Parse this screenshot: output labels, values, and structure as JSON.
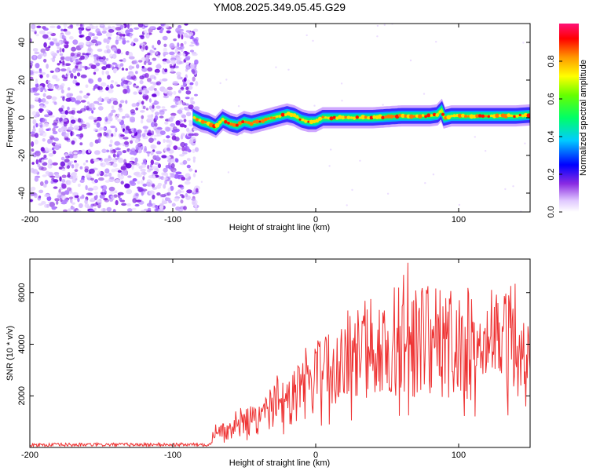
{
  "title": "YM08.2025.349.05.45.G29",
  "chart_data": [
    {
      "type": "heatmap",
      "name": "spectrogram",
      "xlabel": "Height of straight line (km)",
      "ylabel": "Frequency (Hz)",
      "xlim": [
        -200,
        150
      ],
      "ylim": [
        -50,
        50
      ],
      "xticks": [
        -200,
        -100,
        0,
        100
      ],
      "yticks": [
        -40,
        -20,
        0,
        20,
        40
      ],
      "colorbar": {
        "label": "Normalized spectral amplitude",
        "range": [
          0,
          1
        ],
        "ticks": [
          0.0,
          0.2,
          0.4,
          0.6,
          0.8
        ]
      },
      "noise_region_x": [
        -200,
        -85
      ],
      "signal_track": {
        "x": [
          -85,
          -80,
          -75,
          -70,
          -65,
          -60,
          -55,
          -50,
          -45,
          -40,
          -35,
          -30,
          -25,
          -20,
          -15,
          -10,
          -5,
          0,
          5,
          10,
          20,
          30,
          40,
          50,
          60,
          70,
          80,
          85,
          88,
          90,
          95,
          100,
          110,
          120,
          130,
          140,
          150
        ],
        "freq": [
          0,
          -2,
          -3,
          -5,
          -1,
          -3,
          -4,
          -2,
          -3,
          -2,
          -1,
          0,
          1,
          2,
          1,
          -1,
          -2,
          -2,
          0,
          0,
          0,
          0,
          0,
          0.5,
          1,
          1,
          1,
          1.5,
          4,
          0,
          1,
          1,
          1,
          1,
          1,
          1,
          1.5
        ]
      }
    },
    {
      "type": "line",
      "name": "snr",
      "xlabel": "Height of straight line (km)",
      "ylabel": "SNR (10 * v/v)",
      "xlim": [
        -200,
        150
      ],
      "ylim": [
        0,
        7300
      ],
      "xticks": [
        -200,
        -100,
        0,
        100
      ],
      "yticks": [
        2000,
        4000,
        6000
      ],
      "color": "#ee3333",
      "envelope": {
        "x": [
          -200,
          -90,
          -75,
          -70,
          -60,
          -50,
          -40,
          -30,
          -27,
          -25,
          -20,
          -10,
          0,
          10,
          20,
          30,
          40,
          50,
          60,
          70,
          80,
          90,
          95,
          100,
          110,
          120,
          130,
          140,
          145,
          150
        ],
        "y": [
          100,
          110,
          120,
          500,
          700,
          900,
          1100,
          1500,
          2200,
          1600,
          1800,
          2200,
          2700,
          3000,
          3400,
          3600,
          3800,
          4000,
          4100,
          4200,
          4100,
          4000,
          4000,
          4100,
          4000,
          4000,
          4100,
          4200,
          3500,
          3000
        ]
      }
    }
  ]
}
